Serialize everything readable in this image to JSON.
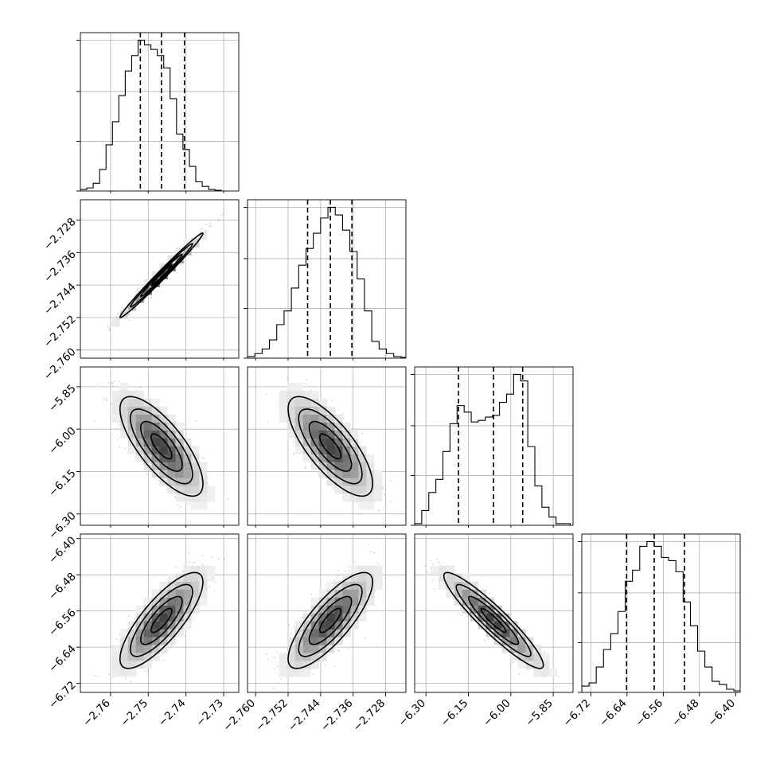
{
  "chart_data": {
    "type": "corner",
    "grid": true,
    "parameters": [
      {
        "range": [
          -2.768,
          -2.726
        ],
        "ticks": [
          -2.76,
          -2.75,
          -2.74,
          -2.73
        ],
        "tick_labels": [
          "−2.76",
          "−2.75",
          "−2.74",
          "−2.73"
        ],
        "mean": -2.7465,
        "std": 0.0055,
        "quantiles": [
          -2.7521,
          -2.7465,
          -2.7404
        ],
        "hist": [
          {
            "x": -2.768,
            "h": 0.01
          },
          {
            "x": -2.7663,
            "h": 0.02
          },
          {
            "x": -2.7646,
            "h": 0.05
          },
          {
            "x": -2.7629,
            "h": 0.14
          },
          {
            "x": -2.7612,
            "h": 0.3
          },
          {
            "x": -2.7595,
            "h": 0.45
          },
          {
            "x": -2.7578,
            "h": 0.62
          },
          {
            "x": -2.7561,
            "h": 0.78
          },
          {
            "x": -2.7544,
            "h": 0.88
          },
          {
            "x": -2.7527,
            "h": 0.98
          },
          {
            "x": -2.751,
            "h": 0.95
          },
          {
            "x": -2.7493,
            "h": 0.92
          },
          {
            "x": -2.7476,
            "h": 0.88
          },
          {
            "x": -2.7459,
            "h": 0.8
          },
          {
            "x": -2.7442,
            "h": 0.6
          },
          {
            "x": -2.7425,
            "h": 0.37
          },
          {
            "x": -2.7408,
            "h": 0.27
          },
          {
            "x": -2.7391,
            "h": 0.16
          },
          {
            "x": -2.7374,
            "h": 0.06
          },
          {
            "x": -2.7357,
            "h": 0.03
          },
          {
            "x": -2.734,
            "h": 0.01
          },
          {
            "x": -2.7323,
            "h": 0.005
          }
        ]
      },
      {
        "range": [
          -2.762,
          -2.723
        ],
        "ticks": [
          -2.76,
          -2.752,
          -2.744,
          -2.736,
          -2.728
        ],
        "tick_labels": [
          "−2.760",
          "−2.752",
          "−2.744",
          "−2.736",
          "−2.728"
        ],
        "mean": -2.7416,
        "std": 0.0052,
        "quantiles": [
          -2.7472,
          -2.7416,
          -2.7363
        ],
        "hist": [
          {
            "x": -2.762,
            "h": 0.01
          },
          {
            "x": -2.7602,
            "h": 0.03
          },
          {
            "x": -2.7584,
            "h": 0.06
          },
          {
            "x": -2.7566,
            "h": 0.12
          },
          {
            "x": -2.7548,
            "h": 0.22
          },
          {
            "x": -2.753,
            "h": 0.31
          },
          {
            "x": -2.7512,
            "h": 0.46
          },
          {
            "x": -2.7494,
            "h": 0.61
          },
          {
            "x": -2.7476,
            "h": 0.72
          },
          {
            "x": -2.7458,
            "h": 0.82
          },
          {
            "x": -2.744,
            "h": 0.92
          },
          {
            "x": -2.7422,
            "h": 0.99
          },
          {
            "x": -2.7404,
            "h": 0.94
          },
          {
            "x": -2.7386,
            "h": 0.84
          },
          {
            "x": -2.7368,
            "h": 0.7
          },
          {
            "x": -2.735,
            "h": 0.52
          },
          {
            "x": -2.7332,
            "h": 0.31
          },
          {
            "x": -2.7314,
            "h": 0.11
          },
          {
            "x": -2.7296,
            "h": 0.06
          },
          {
            "x": -2.7278,
            "h": 0.03
          },
          {
            "x": -2.726,
            "h": 0.01
          },
          {
            "x": -2.7242,
            "h": 0.005
          }
        ]
      },
      {
        "range": [
          -6.34,
          -5.78
        ],
        "ticks": [
          -6.3,
          -6.15,
          -6.0,
          -5.85
        ],
        "tick_labels": [
          "−6.30",
          "−6.15",
          "−6.00",
          "−5.85"
        ],
        "mean": -6.061,
        "std": 0.088,
        "quantiles": [
          -6.185,
          -6.061,
          -5.958
        ],
        "hist": [
          {
            "x": -6.34,
            "h": 0.01
          },
          {
            "x": -6.315,
            "h": 0.09
          },
          {
            "x": -6.29,
            "h": 0.2
          },
          {
            "x": -6.265,
            "h": 0.28
          },
          {
            "x": -6.24,
            "h": 0.45
          },
          {
            "x": -6.215,
            "h": 0.62
          },
          {
            "x": -6.19,
            "h": 0.73
          },
          {
            "x": -6.165,
            "h": 0.69
          },
          {
            "x": -6.14,
            "h": 0.63
          },
          {
            "x": -6.115,
            "h": 0.64
          },
          {
            "x": -6.09,
            "h": 0.66
          },
          {
            "x": -6.065,
            "h": 0.67
          },
          {
            "x": -6.04,
            "h": 0.75
          },
          {
            "x": -6.015,
            "h": 0.8
          },
          {
            "x": -5.99,
            "h": 0.92
          },
          {
            "x": -5.965,
            "h": 0.88
          },
          {
            "x": -5.94,
            "h": 0.48
          },
          {
            "x": -5.915,
            "h": 0.24
          },
          {
            "x": -5.89,
            "h": 0.11
          },
          {
            "x": -5.865,
            "h": 0.05
          },
          {
            "x": -5.84,
            "h": 0.01
          },
          {
            "x": -5.815,
            "h": 0.01
          }
        ]
      },
      {
        "range": [
          -6.74,
          -6.39
        ],
        "ticks": [
          -6.72,
          -6.64,
          -6.56,
          -6.48,
          -6.4
        ],
        "tick_labels": [
          "−6.72",
          "−6.64",
          "−6.56",
          "−6.48",
          "−6.40"
        ],
        "mean": -6.581,
        "std": 0.053,
        "quantiles": [
          -6.641,
          -6.58,
          -6.513
        ],
        "hist": [
          {
            "x": -6.74,
            "h": 0.04
          },
          {
            "x": -6.724,
            "h": 0.06
          },
          {
            "x": -6.708,
            "h": 0.16
          },
          {
            "x": -6.692,
            "h": 0.27
          },
          {
            "x": -6.676,
            "h": 0.37
          },
          {
            "x": -6.66,
            "h": 0.51
          },
          {
            "x": -6.644,
            "h": 0.7
          },
          {
            "x": -6.628,
            "h": 0.77
          },
          {
            "x": -6.612,
            "h": 0.92
          },
          {
            "x": -6.596,
            "h": 0.95
          },
          {
            "x": -6.58,
            "h": 0.92
          },
          {
            "x": -6.564,
            "h": 0.85
          },
          {
            "x": -6.548,
            "h": 0.83
          },
          {
            "x": -6.532,
            "h": 0.76
          },
          {
            "x": -6.516,
            "h": 0.57
          },
          {
            "x": -6.5,
            "h": 0.42
          },
          {
            "x": -6.484,
            "h": 0.26
          },
          {
            "x": -6.468,
            "h": 0.16
          },
          {
            "x": -6.452,
            "h": 0.07
          },
          {
            "x": -6.436,
            "h": 0.05
          },
          {
            "x": -6.42,
            "h": 0.02
          },
          {
            "x": -6.404,
            "h": 0.01
          }
        ]
      }
    ],
    "correlations": [
      {
        "params": [
          0,
          1
        ],
        "r": 0.99
      },
      {
        "params": [
          0,
          2
        ],
        "r": -0.75
      },
      {
        "params": [
          0,
          3
        ],
        "r": 0.8
      },
      {
        "params": [
          1,
          2
        ],
        "r": -0.75
      },
      {
        "params": [
          1,
          3
        ],
        "r": 0.8
      },
      {
        "params": [
          2,
          3
        ],
        "r": -0.93
      }
    ],
    "contour_levels_sigma": [
      0.5,
      1.0,
      1.5,
      2.0
    ]
  }
}
